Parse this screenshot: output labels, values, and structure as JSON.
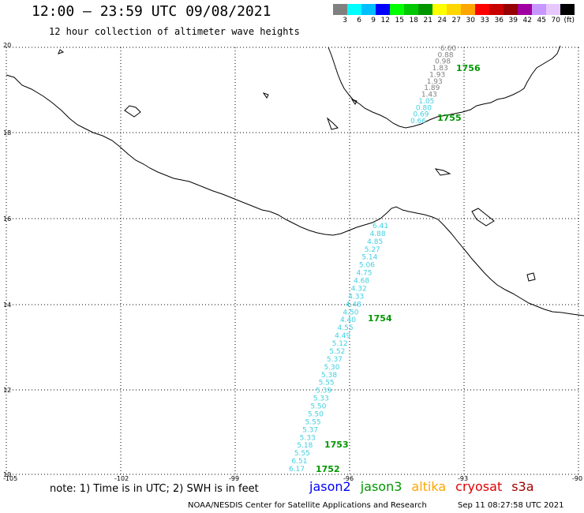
{
  "header": {
    "title": "12:00 – 23:59 UTC 09/08/2021",
    "subtitle": "12 hour collection of altimeter wave heights"
  },
  "colorbar": {
    "colors": [
      "#808080",
      "#00ffff",
      "#00bfff",
      "#0000ff",
      "#00ff00",
      "#00c800",
      "#009600",
      "#ffff00",
      "#ffd700",
      "#ffa500",
      "#ff0000",
      "#c80000",
      "#960000",
      "#a000a0",
      "#c896ff",
      "#e6c8ff",
      "#000000"
    ],
    "labels": [
      "3",
      "6",
      "9",
      "12",
      "15",
      "18",
      "21",
      "24",
      "27",
      "30",
      "33",
      "36",
      "39",
      "42",
      "45",
      "70",
      "(ft)"
    ]
  },
  "axes": {
    "lat_labels": [
      "20",
      "18",
      "16",
      "14",
      "12",
      "10"
    ],
    "lon_labels": [
      "-105",
      "-102",
      "-99",
      "-96",
      "-93",
      "-90"
    ]
  },
  "tracks": {
    "north": {
      "values": [
        "6.60",
        "0.88",
        "0.98",
        "1.83",
        "1.93",
        "1.93",
        "1.89",
        "1.43",
        "1.05",
        "0.80",
        "0.69",
        "0.66"
      ],
      "colors": [
        "#808080",
        "#808080",
        "#808080",
        "#808080",
        "#808080",
        "#808080",
        "#808080",
        "#808080",
        "#40d0e0",
        "#40d0e0",
        "#40d0e0",
        "#40d0e0"
      ],
      "times": [
        "1756",
        "1755"
      ]
    },
    "south": {
      "values": [
        "6.41",
        "4.88",
        "4.85",
        "5.27",
        "5.14",
        "5.06",
        "4.75",
        "4.68",
        "4.32",
        "4.33",
        "4.48",
        "4.50",
        "4.40",
        "4.55",
        "4.49",
        "5.12",
        "5.52",
        "5.37",
        "5.30",
        "5.38",
        "5.55",
        "5.39",
        "5.33",
        "5.50",
        "5.50",
        "5.55",
        "5.37",
        "5.33",
        "5.18",
        "5.55",
        "6.51",
        "6.17"
      ],
      "color": "#40d0e0",
      "times": [
        "1754",
        "1753",
        "1752"
      ]
    }
  },
  "footer": {
    "note": "note: 1) Time is in UTC; 2) SWH is in feet",
    "satellites": [
      {
        "name": "jason2",
        "color": "#0000ff"
      },
      {
        "name": "jason3",
        "color": "#009600"
      },
      {
        "name": "altika",
        "color": "#ffa500"
      },
      {
        "name": "cryosat",
        "color": "#e00000"
      },
      {
        "name": "s3a",
        "color": "#a00000"
      }
    ],
    "credit": "NOAA/NESDIS Center for Satellite Applications and Research",
    "timestamp": "Sep 11 08:27:58 UTC 2021"
  }
}
